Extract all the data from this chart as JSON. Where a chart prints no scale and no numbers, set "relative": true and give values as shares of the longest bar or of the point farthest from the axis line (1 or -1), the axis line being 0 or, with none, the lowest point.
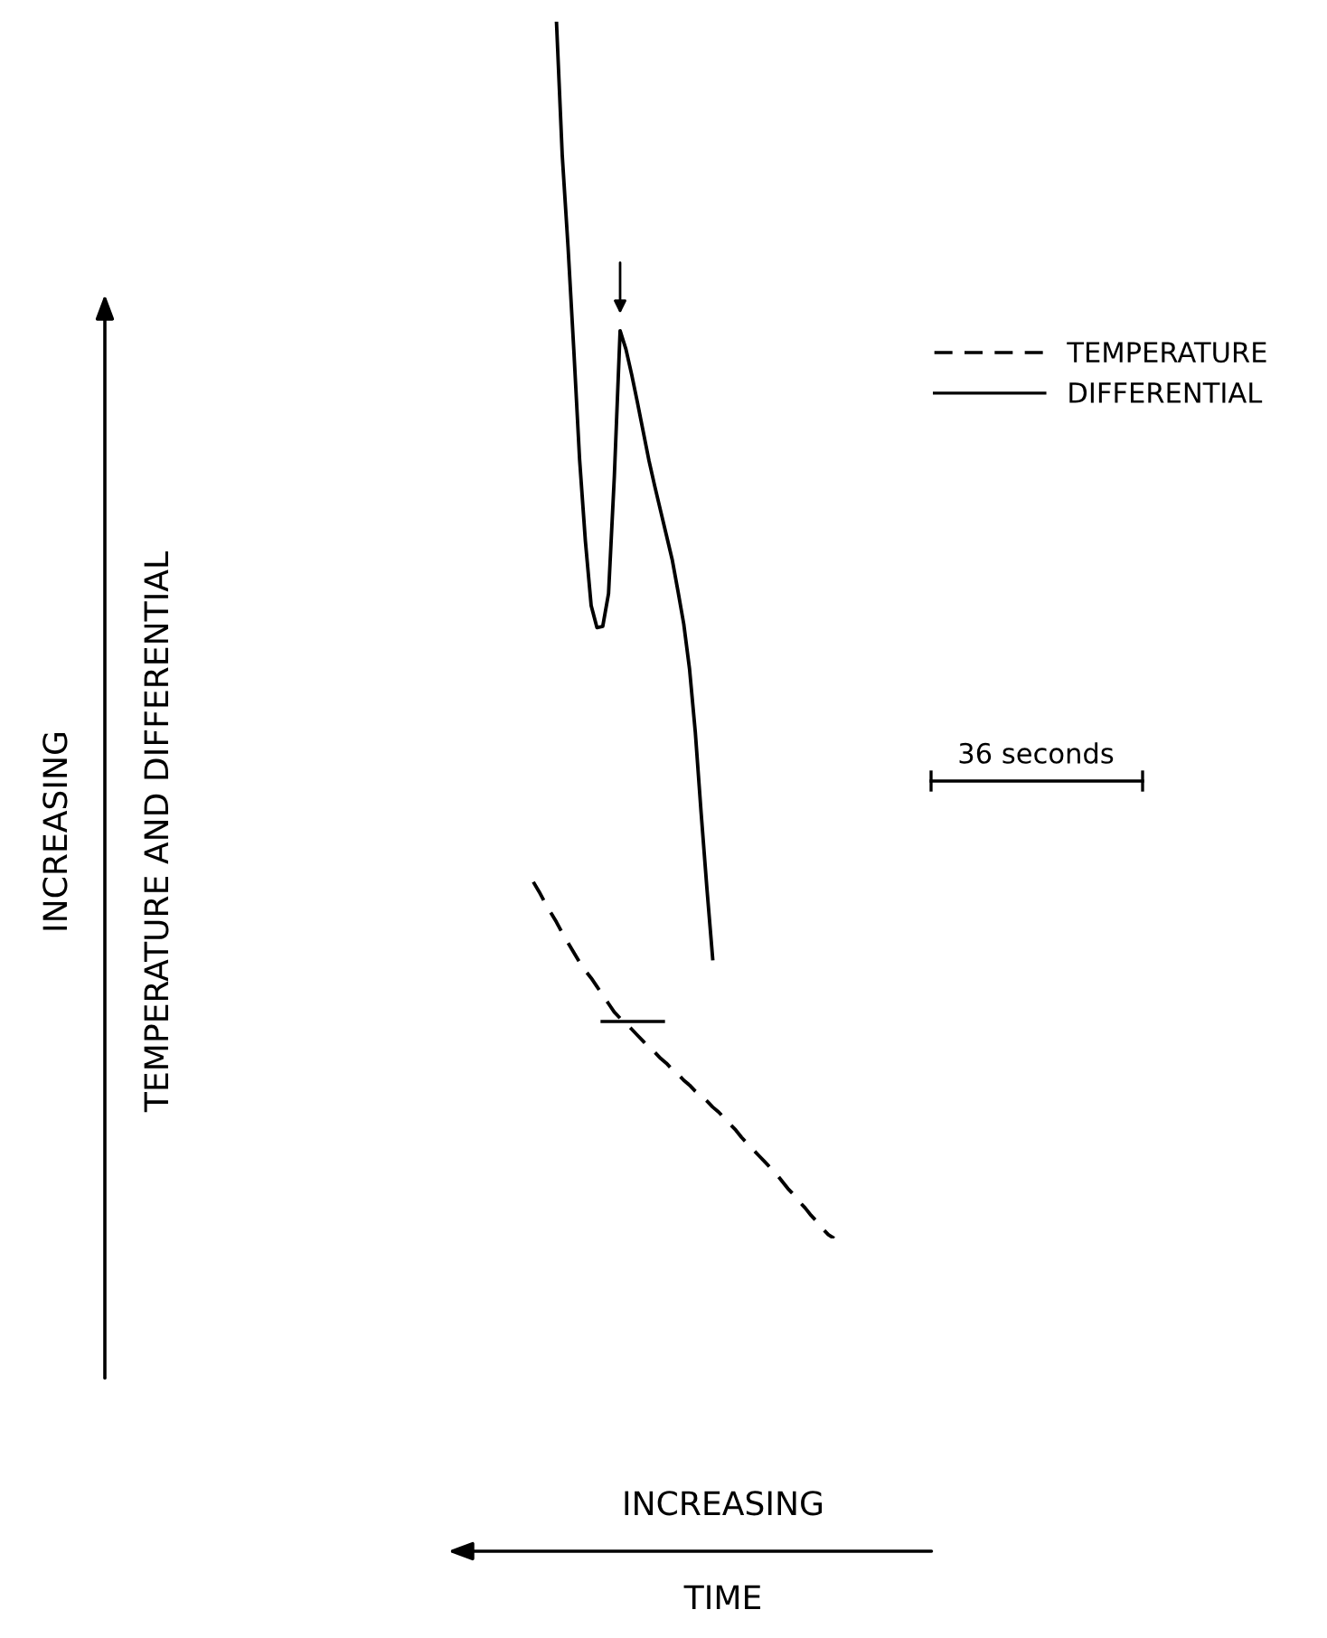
{
  "chart_data": {
    "type": "line",
    "relative": true,
    "xlabel": "INCREASING\nTIME",
    "ylabel": "INCREASING\nTEMPERATURE AND DIFFERENTIAL",
    "legend": "top right",
    "marker": "none",
    "annotations": [
      "36 seconds"
    ],
    "categories": [
      null,
      null,
      null,
      null,
      null,
      null,
      null,
      null,
      null,
      null,
      null,
      null,
      null,
      null,
      null,
      null,
      null,
      null,
      null,
      null,
      null,
      null,
      null,
      null,
      null,
      null,
      null,
      null,
      null,
      null,
      null,
      null,
      null,
      null,
      null,
      null,
      null,
      null,
      null,
      null,
      null,
      null,
      null,
      null,
      null,
      null,
      null,
      null,
      null,
      null,
      null,
      null,
      null
    ],
    "series": [
      {
        "name": "TEMPERATURE",
        "color": "#000000",
        "line_style": "dashed",
        "values": [
          0.293,
          0.285,
          0.276,
          0.268,
          0.26,
          0.251,
          0.243,
          0.235,
          0.227,
          0.22,
          0.214,
          0.207,
          0.2,
          0.193,
          0.186,
          0.181,
          0.177,
          0.172,
          0.167,
          0.162,
          0.157,
          0.153,
          0.148,
          0.144,
          0.139,
          0.135,
          0.13,
          0.126,
          0.121,
          0.117,
          0.113,
          0.108,
          0.104,
          0.099,
          0.094,
          0.089,
          0.083,
          0.078,
          0.073,
          0.068,
          0.063,
          0.058,
          0.053,
          0.047,
          0.041,
          0.036,
          0.03,
          0.025,
          0.019,
          0.014,
          0.008,
          0.003,
          0.0
        ]
      },
      {
        "name": "DIFFERENTIAL",
        "color": "#000000",
        "line_style": "solid",
        "values": [
          null,
          null,
          null,
          null,
          1.0,
          0.89,
          0.815,
          0.73,
          0.64,
          0.573,
          0.52,
          0.502,
          0.503,
          0.53,
          0.626,
          0.746,
          0.731,
          0.71,
          0.687,
          0.663,
          0.639,
          0.618,
          0.598,
          0.578,
          0.558,
          0.532,
          0.505,
          0.468,
          0.416,
          0.35,
          0.288,
          0.23,
          null,
          null,
          null,
          null,
          null,
          null,
          null,
          null,
          null,
          null,
          null,
          null,
          null,
          null,
          null,
          null,
          null,
          null,
          null,
          null,
          null
        ]
      }
    ]
  }
}
